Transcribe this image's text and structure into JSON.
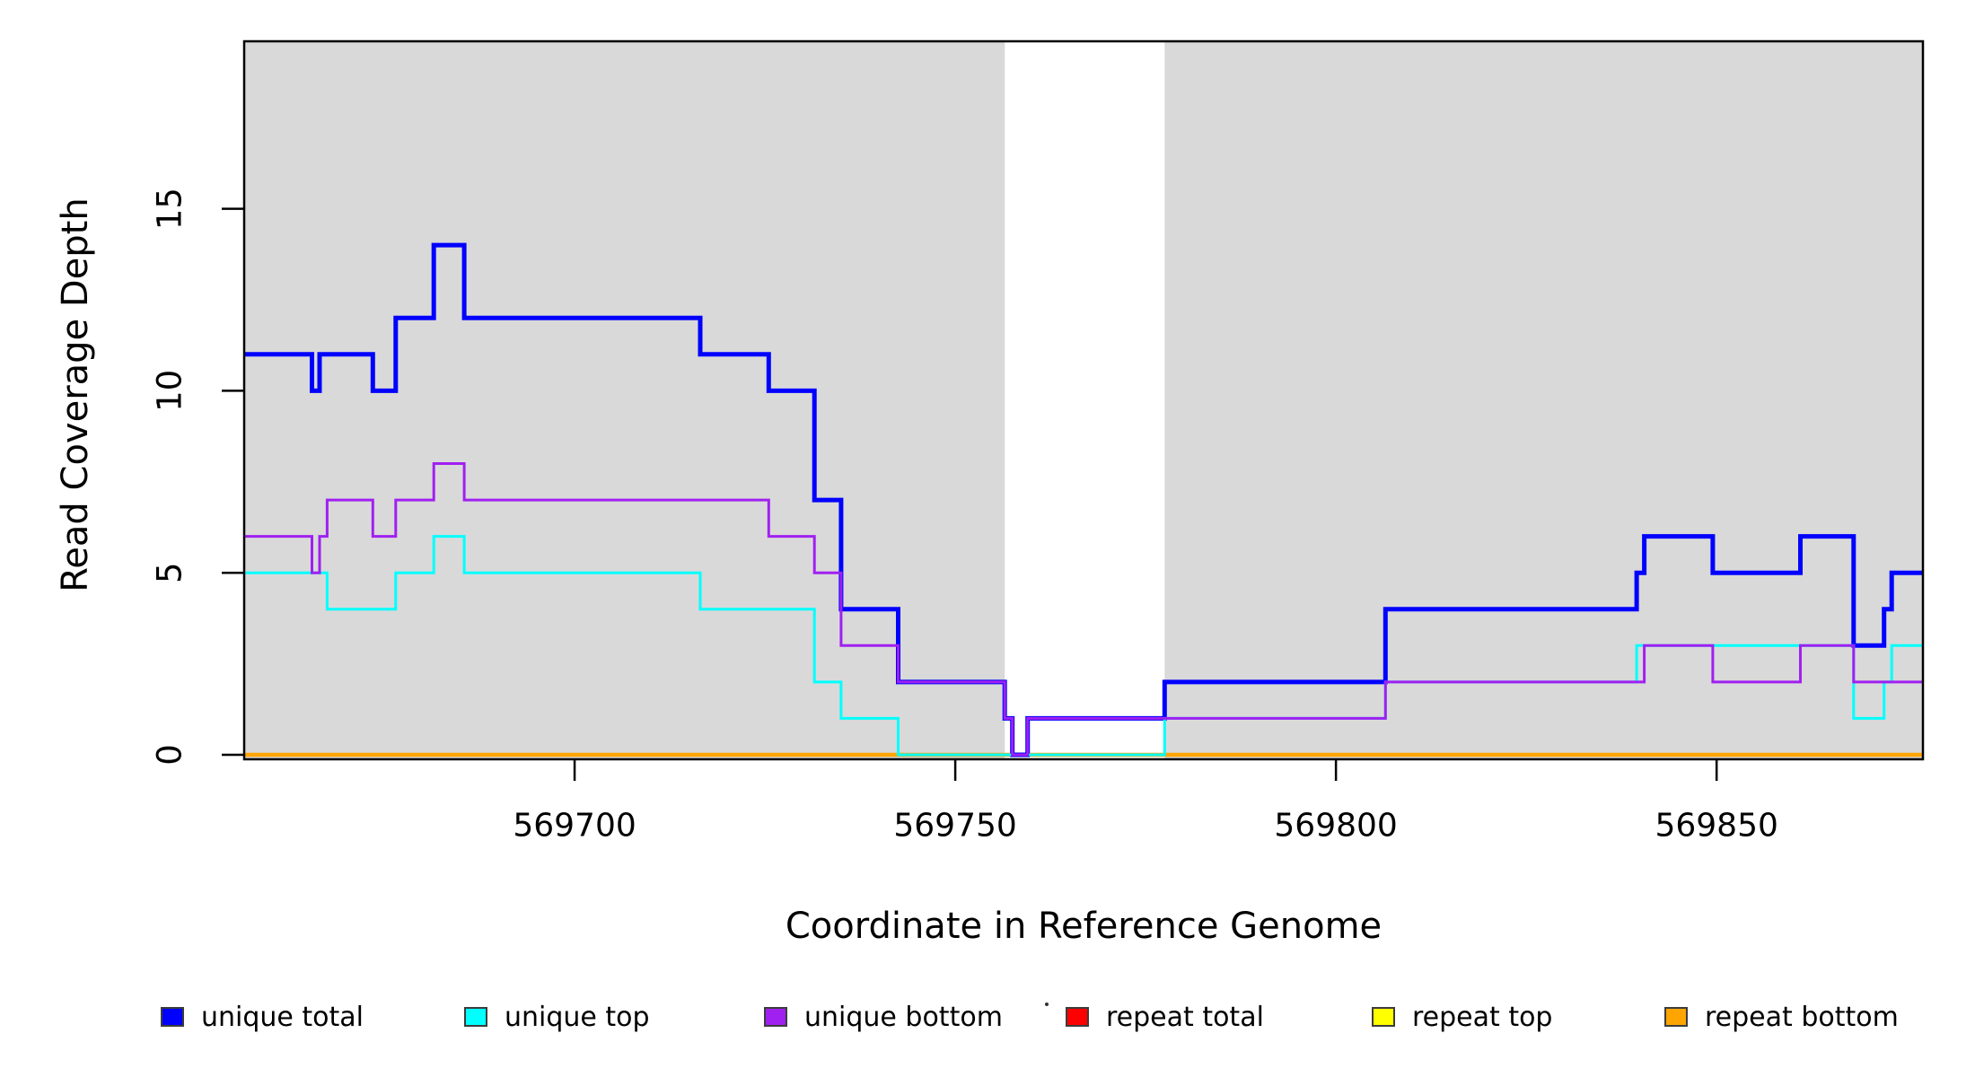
{
  "chart_data": {
    "type": "line",
    "subtype": "step-coverage",
    "title": "",
    "xlabel": "Coordinate in Reference Genome",
    "ylabel": "Read Coverage Depth",
    "xlim": [
      569656.6,
      569877.1
    ],
    "ylim": [
      0,
      19.6
    ],
    "grid": false,
    "x_ticks": [
      569700,
      569750,
      569800,
      569850
    ],
    "x_tick_labels": [
      "569700",
      "569750",
      "569800",
      "569850"
    ],
    "y_ticks": [
      0,
      5,
      10,
      15
    ],
    "y_tick_labels": [
      "0",
      "5",
      "10",
      "15"
    ],
    "plot_background": "#ffffff",
    "shaded_regions": {
      "color": "#d9d9d9",
      "ranges": [
        [
          569656.6,
          569756.5
        ],
        [
          569777.5,
          569877.1
        ]
      ]
    },
    "series": [
      {
        "name": "repeat total",
        "color": "#ff0000",
        "line_width": 3.5,
        "segments": [
          [
            569656.6,
            569877.1,
            0
          ]
        ]
      },
      {
        "name": "repeat top",
        "color": "#ffff00",
        "line_width": 3.5,
        "segments": [
          [
            569656.6,
            569877.1,
            0
          ]
        ]
      },
      {
        "name": "repeat bottom",
        "color": "#ffa500",
        "line_width": 4.5,
        "segments": [
          [
            569656.6,
            569877.1,
            0
          ]
        ]
      },
      {
        "name": "unique total",
        "color": "#0000ff",
        "line_width": 5,
        "segments": [
          [
            569656.6,
            569665.5,
            11
          ],
          [
            569665.5,
            569666.5,
            10
          ],
          [
            569666.5,
            569673.5,
            11
          ],
          [
            569673.5,
            569676.5,
            10
          ],
          [
            569676.5,
            569681.5,
            12
          ],
          [
            569681.5,
            569685.5,
            14
          ],
          [
            569685.5,
            569716.5,
            12
          ],
          [
            569716.5,
            569725.5,
            11
          ],
          [
            569725.5,
            569731.5,
            10
          ],
          [
            569731.5,
            569735.0,
            7
          ],
          [
            569735.0,
            569742.5,
            4
          ],
          [
            569742.5,
            569756.5,
            2
          ],
          [
            569756.5,
            569757.5,
            1
          ],
          [
            569757.5,
            569759.5,
            0
          ],
          [
            569759.5,
            569777.5,
            1
          ],
          [
            569777.5,
            569806.5,
            2
          ],
          [
            569806.5,
            569839.5,
            4
          ],
          [
            569839.5,
            569840.5,
            5
          ],
          [
            569840.5,
            569849.5,
            6
          ],
          [
            569849.5,
            569861.0,
            5
          ],
          [
            569861.0,
            569868.0,
            6
          ],
          [
            569868.0,
            569872.0,
            3
          ],
          [
            569872.0,
            569873.0,
            4
          ],
          [
            569873.0,
            569877.1,
            5
          ]
        ]
      },
      {
        "name": "unique top",
        "color": "#00ffff",
        "line_width": 3,
        "segments": [
          [
            569656.6,
            569667.5,
            5
          ],
          [
            569667.5,
            569676.5,
            4
          ],
          [
            569676.5,
            569681.5,
            5
          ],
          [
            569681.5,
            569685.5,
            6
          ],
          [
            569685.5,
            569716.5,
            5
          ],
          [
            569716.5,
            569731.5,
            4
          ],
          [
            569731.5,
            569735.0,
            2
          ],
          [
            569735.0,
            569742.5,
            1
          ],
          [
            569742.5,
            569777.5,
            0
          ],
          [
            569777.5,
            569806.5,
            1
          ],
          [
            569806.5,
            569839.5,
            2
          ],
          [
            569839.5,
            569868.0,
            3
          ],
          [
            569868.0,
            569872.0,
            1
          ],
          [
            569872.0,
            569873.0,
            2
          ],
          [
            569873.0,
            569877.1,
            3
          ]
        ]
      },
      {
        "name": "unique bottom",
        "color": "#a020f0",
        "line_width": 3,
        "segments": [
          [
            569656.6,
            569665.5,
            6
          ],
          [
            569665.5,
            569666.5,
            5
          ],
          [
            569666.5,
            569667.5,
            6
          ],
          [
            569667.5,
            569673.5,
            7
          ],
          [
            569673.5,
            569676.5,
            6
          ],
          [
            569676.5,
            569681.5,
            7
          ],
          [
            569681.5,
            569685.5,
            8
          ],
          [
            569685.5,
            569725.5,
            7
          ],
          [
            569725.5,
            569731.5,
            6
          ],
          [
            569731.5,
            569735.0,
            5
          ],
          [
            569735.0,
            569742.5,
            3
          ],
          [
            569742.5,
            569756.5,
            2
          ],
          [
            569756.5,
            569757.5,
            1
          ],
          [
            569757.5,
            569759.5,
            0
          ],
          [
            569759.5,
            569806.5,
            1
          ],
          [
            569806.5,
            569840.5,
            2
          ],
          [
            569840.5,
            569849.5,
            3
          ],
          [
            569849.5,
            569861.0,
            2
          ],
          [
            569861.0,
            569868.0,
            3
          ],
          [
            569868.0,
            569877.1,
            2
          ]
        ]
      }
    ],
    "legend": {
      "position": "bottom",
      "items": [
        {
          "label": "unique total",
          "color": "#0000ff"
        },
        {
          "label": "unique top",
          "color": "#00ffff"
        },
        {
          "label": "unique bottom",
          "color": "#a020f0"
        },
        {
          "label": "repeat total",
          "color": "#ff0000"
        },
        {
          "label": "repeat top",
          "color": "#ffff00"
        },
        {
          "label": "repeat bottom",
          "color": "#ffa500"
        }
      ]
    }
  }
}
